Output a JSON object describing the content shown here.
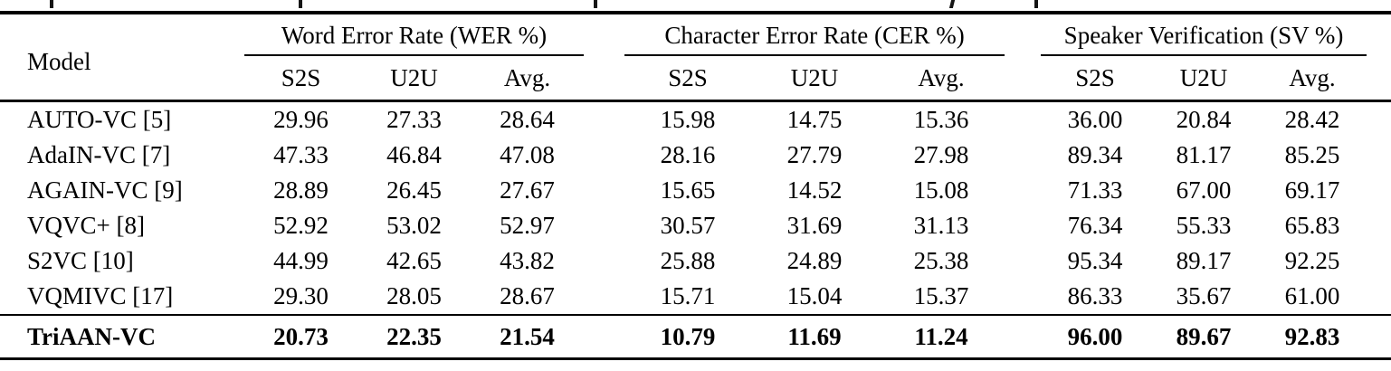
{
  "colors": {
    "text": "#000000",
    "background": "#ffffff",
    "rule": "#000000"
  },
  "table": {
    "model_header": "Model",
    "groups": [
      {
        "label": "Word Error Rate (WER %)",
        "subcols": [
          "S2S",
          "U2U",
          "Avg."
        ]
      },
      {
        "label": "Character Error Rate (CER %)",
        "subcols": [
          "S2S",
          "U2U",
          "Avg."
        ]
      },
      {
        "label": "Speaker Verification (SV %)",
        "subcols": [
          "S2S",
          "U2U",
          "Avg."
        ]
      }
    ],
    "rows": [
      {
        "model": "AUTO-VC [5]",
        "wer": [
          "29.96",
          "27.33",
          "28.64"
        ],
        "cer": [
          "15.98",
          "14.75",
          "15.36"
        ],
        "sv": [
          "36.00",
          "20.84",
          "28.42"
        ]
      },
      {
        "model": "AdaIN-VC [7]",
        "wer": [
          "47.33",
          "46.84",
          "47.08"
        ],
        "cer": [
          "28.16",
          "27.79",
          "27.98"
        ],
        "sv": [
          "89.34",
          "81.17",
          "85.25"
        ]
      },
      {
        "model": "AGAIN-VC [9]",
        "wer": [
          "28.89",
          "26.45",
          "27.67"
        ],
        "cer": [
          "15.65",
          "14.52",
          "15.08"
        ],
        "sv": [
          "71.33",
          "67.00",
          "69.17"
        ]
      },
      {
        "model": "VQVC+ [8]",
        "wer": [
          "52.92",
          "53.02",
          "52.97"
        ],
        "cer": [
          "30.57",
          "31.69",
          "31.13"
        ],
        "sv": [
          "76.34",
          "55.33",
          "65.83"
        ]
      },
      {
        "model": "S2VC [10]",
        "wer": [
          "44.99",
          "42.65",
          "43.82"
        ],
        "cer": [
          "25.88",
          "24.89",
          "25.38"
        ],
        "sv": [
          "95.34",
          "89.17",
          "92.25"
        ]
      },
      {
        "model": "VQMIVC [17]",
        "wer": [
          "29.30",
          "28.05",
          "28.67"
        ],
        "cer": [
          "15.71",
          "15.04",
          "15.37"
        ],
        "sv": [
          "86.33",
          "35.67",
          "61.00"
        ]
      }
    ],
    "highlight_row": {
      "model": "TriAAN-VC",
      "wer": [
        "20.73",
        "22.35",
        "21.54"
      ],
      "cer": [
        "10.79",
        "11.69",
        "11.24"
      ],
      "sv": [
        "96.00",
        "89.67",
        "92.83"
      ]
    }
  }
}
